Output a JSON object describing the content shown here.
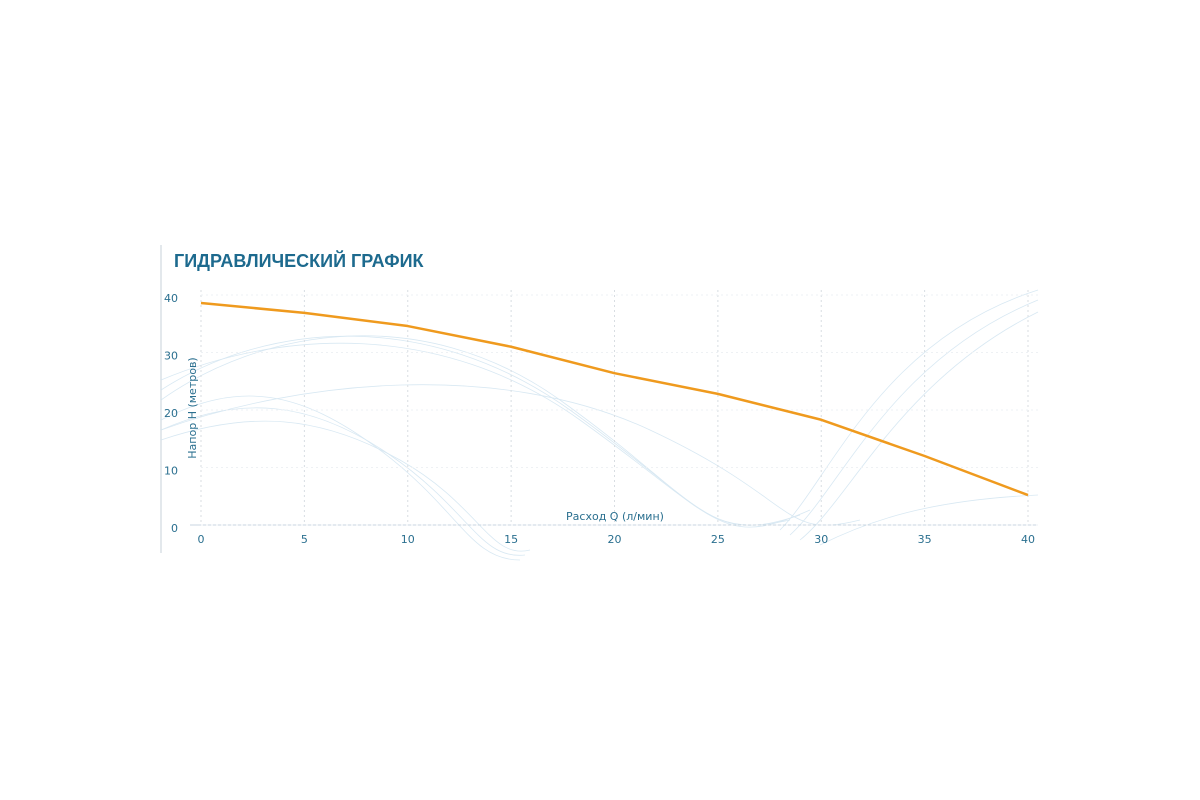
{
  "chart_data": {
    "type": "line",
    "title": "ГИДРАВЛИЧЕСКИЙ ГРАФИК",
    "x_label": "Расход Q (л/мин)",
    "y_label": "Напор H (метров)",
    "x": [
      0,
      5,
      10,
      15,
      20,
      25,
      30,
      35,
      40
    ],
    "values": [
      38.6,
      36.9,
      34.6,
      31.0,
      26.4,
      22.8,
      18.3,
      12.0,
      5.2
    ],
    "color": "#ef9a1e",
    "xlim": [
      0,
      40
    ],
    "xticks": [
      0,
      5,
      10,
      15,
      20,
      25,
      30,
      35,
      40
    ],
    "ylim": [
      0,
      40
    ],
    "yticks": [
      0,
      10,
      20,
      30,
      40
    ],
    "grid": true
  }
}
